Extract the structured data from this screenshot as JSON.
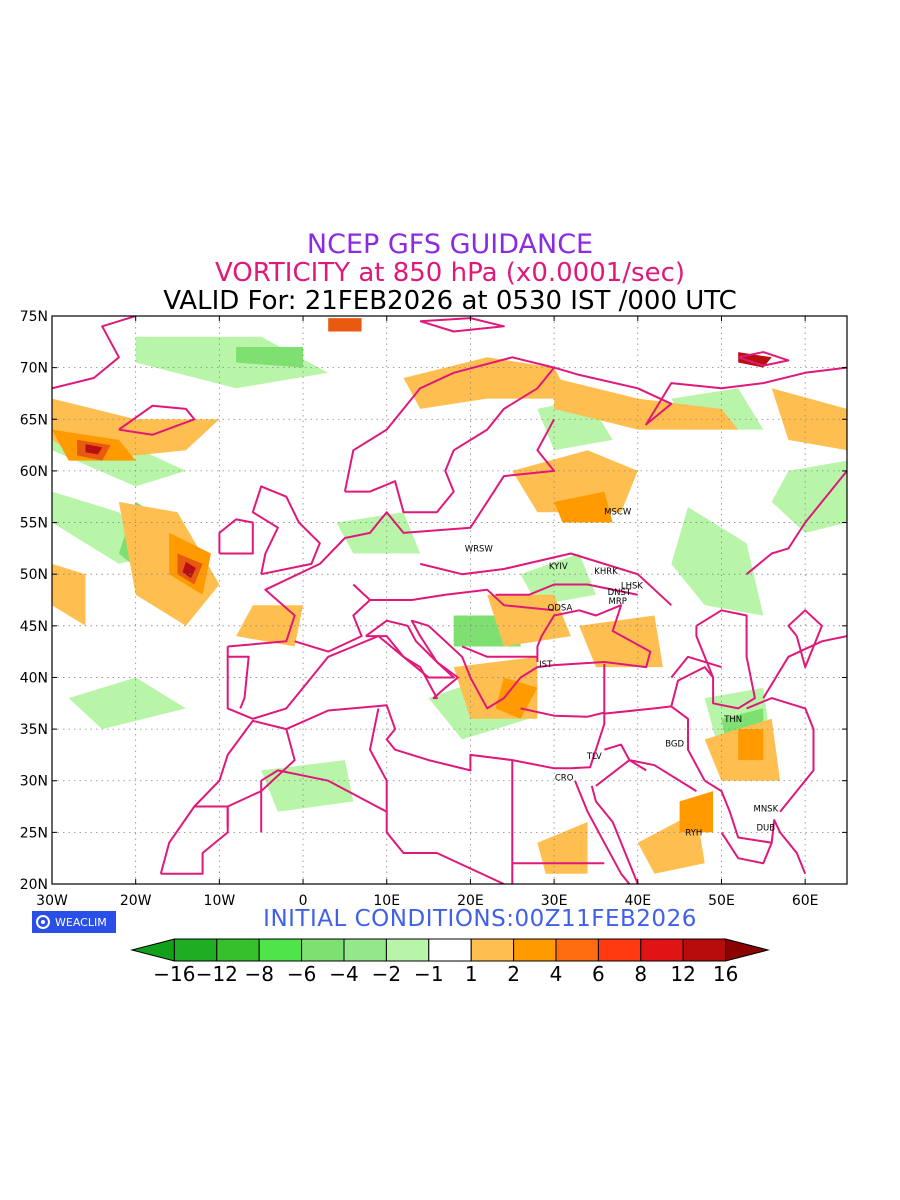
{
  "titles": {
    "line1": "NCEP GFS GUIDANCE",
    "line2": "VORTICITY at 850 hPa (x0.0001/sec)",
    "line3": "VALID For: 21FEB2026 at 0530 IST /000 UTC"
  },
  "footer": {
    "initial_conditions": "INITIAL CONDITIONS:00Z11FEB2026",
    "logo_text": "WEACLIM"
  },
  "map": {
    "projection": "lat-lon",
    "lon_range": [
      -30,
      65
    ],
    "lat_range": [
      20,
      75
    ],
    "grid": "dotted",
    "lon_ticks": [
      {
        "value": -30,
        "label": "30W"
      },
      {
        "value": -20,
        "label": "20W"
      },
      {
        "value": -10,
        "label": "10W"
      },
      {
        "value": 0,
        "label": "0"
      },
      {
        "value": 10,
        "label": "10E"
      },
      {
        "value": 20,
        "label": "20E"
      },
      {
        "value": 30,
        "label": "30E"
      },
      {
        "value": 40,
        "label": "40E"
      },
      {
        "value": 50,
        "label": "50E"
      },
      {
        "value": 60,
        "label": "60E"
      }
    ],
    "lat_ticks": [
      {
        "value": 75,
        "label": "75N"
      },
      {
        "value": 70,
        "label": "70N"
      },
      {
        "value": 65,
        "label": "65N"
      },
      {
        "value": 60,
        "label": "60N"
      },
      {
        "value": 55,
        "label": "55N"
      },
      {
        "value": 50,
        "label": "50N"
      },
      {
        "value": 45,
        "label": "45N"
      },
      {
        "value": 40,
        "label": "40N"
      },
      {
        "value": 35,
        "label": "35N"
      },
      {
        "value": 30,
        "label": "30N"
      },
      {
        "value": 25,
        "label": "25N"
      },
      {
        "value": 20,
        "label": "20N"
      }
    ],
    "cities": [
      {
        "name": "MSCW",
        "lon": 37.6,
        "lat": 55.8
      },
      {
        "name": "WRSW",
        "lon": 21.0,
        "lat": 52.2
      },
      {
        "name": "KYIV",
        "lon": 30.5,
        "lat": 50.5
      },
      {
        "name": "KHRK",
        "lon": 36.2,
        "lat": 50.0
      },
      {
        "name": "LHSK",
        "lon": 39.3,
        "lat": 48.6
      },
      {
        "name": "DNST",
        "lon": 37.8,
        "lat": 48.0
      },
      {
        "name": "MRP",
        "lon": 37.6,
        "lat": 47.1
      },
      {
        "name": "ODSA",
        "lon": 30.7,
        "lat": 46.5
      },
      {
        "name": "IST",
        "lon": 29.0,
        "lat": 41.0
      },
      {
        "name": "THN",
        "lon": 51.4,
        "lat": 35.7
      },
      {
        "name": "BGD",
        "lon": 44.4,
        "lat": 33.3
      },
      {
        "name": "TLV",
        "lon": 34.8,
        "lat": 32.1
      },
      {
        "name": "CRO",
        "lon": 31.2,
        "lat": 30.0
      },
      {
        "name": "MNSK",
        "lon": 55.3,
        "lat": 27.0
      },
      {
        "name": "DUB",
        "lon": 55.3,
        "lat": 25.2
      },
      {
        "name": "RYH",
        "lon": 46.7,
        "lat": 24.7
      }
    ],
    "colors": {
      "boundary": "#e0187a",
      "neg_light": "#b8f5a8",
      "neg_mid": "#7ee070",
      "neg_dark": "#36b62c",
      "pos_light": "#ffbf50",
      "pos_mid": "#ff9a00",
      "pos_dark": "#e85a10",
      "pos_max": "#b81010"
    }
  },
  "legend": {
    "colors": [
      "#12a01a",
      "#1fad23",
      "#36c02c",
      "#4fe54a",
      "#7ee070",
      "#95e889",
      "#b8f5a8",
      "#ffffff",
      "#ffbf50",
      "#ff9a00",
      "#ff6d10",
      "#ff3a10",
      "#e01414",
      "#b80c0c",
      "#8b0000"
    ],
    "labels": [
      "−16",
      "−12",
      "−8",
      "−6",
      "−4",
      "−2",
      "−1",
      "1",
      "2",
      "4",
      "6",
      "8",
      "12",
      "16"
    ]
  }
}
